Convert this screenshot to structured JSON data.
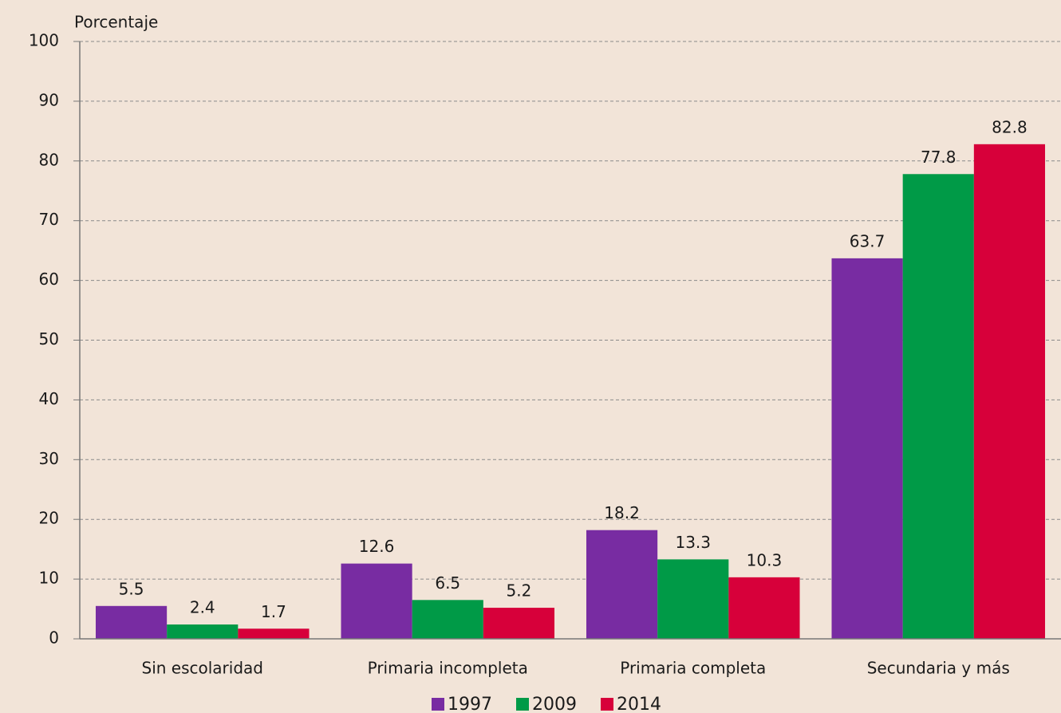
{
  "chart_data": {
    "type": "bar",
    "y_label": "Porcentaje",
    "categories": [
      "Sin escolaridad",
      "Primaria incompleta",
      "Primaria completa",
      "Secundaria y más"
    ],
    "series": [
      {
        "name": "1997",
        "color": "#782ca2",
        "values": [
          5.5,
          12.6,
          18.2,
          63.7
        ]
      },
      {
        "name": "2009",
        "color": "#009a47",
        "values": [
          2.4,
          6.5,
          13.3,
          77.8
        ]
      },
      {
        "name": "2014",
        "color": "#d7003a",
        "values": [
          1.7,
          5.2,
          10.3,
          82.8
        ]
      }
    ],
    "ylim": [
      0,
      100
    ],
    "yticks": [
      0,
      10,
      20,
      30,
      40,
      50,
      60,
      70,
      80,
      90,
      100
    ],
    "grid": true,
    "legend": "bottom"
  }
}
